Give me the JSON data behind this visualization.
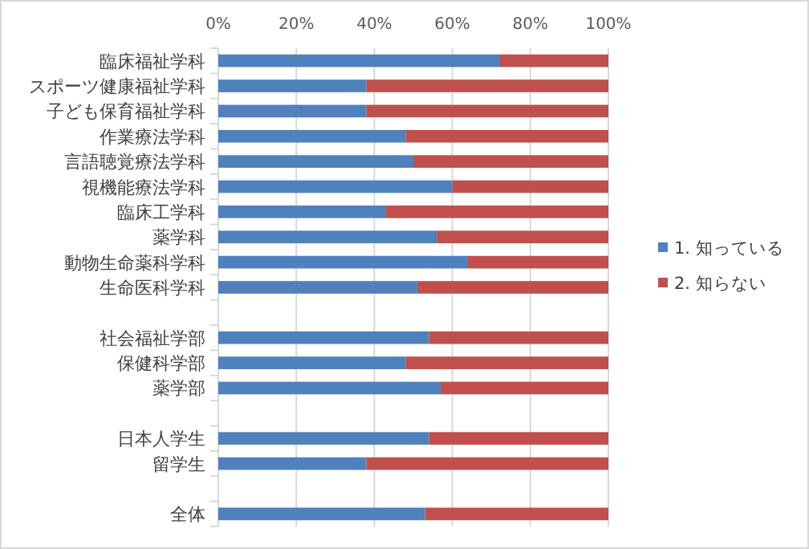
{
  "chart_data": {
    "type": "bar",
    "orientation": "horizontal",
    "stacked": true,
    "categories": [
      "臨床福祉学科",
      "スポーツ健康福祉学科",
      "子ども保育福祉学科",
      "作業療法学科",
      "言語聴覚療法学科",
      "視機能療法学科",
      "臨床工学科",
      "薬学科",
      "動物生命薬科学科",
      "生命医科学科",
      null,
      "社会福祉学部",
      "保健科学部",
      "薬学部",
      null,
      "日本人学生",
      "留学生",
      null,
      "全体"
    ],
    "series": [
      {
        "name": "1. 知っている",
        "color": "#4f81bd",
        "values": [
          72,
          38,
          38,
          48,
          50,
          60,
          43,
          56,
          64,
          51,
          null,
          54,
          48,
          57,
          null,
          54,
          38,
          null,
          53
        ]
      },
      {
        "name": "2. 知らない",
        "color": "#c0504d",
        "values": [
          28,
          62,
          62,
          52,
          50,
          40,
          57,
          44,
          36,
          49,
          null,
          46,
          52,
          43,
          null,
          46,
          62,
          null,
          47
        ]
      }
    ],
    "xlim": [
      0,
      100
    ],
    "xticks": [
      {
        "value": 0,
        "label": "0%"
      },
      {
        "value": 20,
        "label": "20%"
      },
      {
        "value": 40,
        "label": "40%"
      },
      {
        "value": 60,
        "label": "60%"
      },
      {
        "value": 80,
        "label": "80%"
      },
      {
        "value": 100,
        "label": "100%"
      }
    ],
    "grid": "x",
    "legend": "right"
  }
}
